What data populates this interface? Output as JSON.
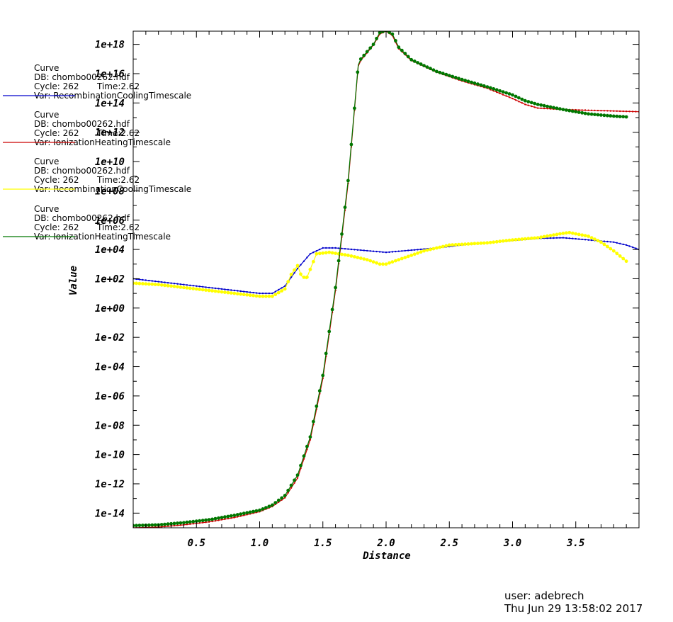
{
  "chart_data": {
    "type": "line",
    "xlabel": "Distance",
    "ylabel": "Value",
    "xlim": [
      0.0,
      4.0
    ],
    "ylim_exp": [
      -15,
      18.9
    ],
    "yscale": "log",
    "grid": false,
    "x_ticks": [
      "0.5",
      "1.0",
      "1.5",
      "2.0",
      "2.5",
      "3.0",
      "3.5"
    ],
    "y_ticks": [
      "1e+18",
      "1e+16",
      "1e+14",
      "1e+12",
      "1e+10",
      "1e+08",
      "1e+06",
      "1e+04",
      "1e+02",
      "1e+00",
      "1e-02",
      "1e-04",
      "1e-06",
      "1e-08",
      "1e-10",
      "1e-12",
      "1e-14"
    ],
    "legend_position": "left",
    "series": [
      {
        "name": "RecombinationCoolingTimescale",
        "header": "Curve",
        "db": "DB: chombo00262.hdf",
        "cycle": "Cycle: 262",
        "time": "Time:2.62",
        "var": "Var: RecombinationCoolingTimescale",
        "color": "#0000cc",
        "marker": "small",
        "x": [
          0.0,
          0.2,
          0.4,
          0.6,
          0.8,
          1.0,
          1.1,
          1.2,
          1.3,
          1.4,
          1.5,
          1.6,
          1.8,
          2.0,
          2.2,
          2.4,
          2.6,
          2.8,
          3.0,
          3.2,
          3.4,
          3.6,
          3.8,
          3.9,
          4.0
        ],
        "logy": [
          2.0,
          1.8,
          1.6,
          1.4,
          1.2,
          1.0,
          1.0,
          1.5,
          2.7,
          3.7,
          4.1,
          4.1,
          3.95,
          3.8,
          3.95,
          4.1,
          4.3,
          4.45,
          4.6,
          4.75,
          4.8,
          4.65,
          4.5,
          4.3,
          4.0
        ]
      },
      {
        "name": "IonizationHeatingTimescale",
        "header": "Curve",
        "db": "DB: chombo00262.hdf",
        "cycle": "Cycle: 262",
        "time": "Time:2.62",
        "var": "Var: IonizationHeatingTimescale",
        "color": "#cc0000",
        "marker": "small",
        "x": [
          0.0,
          0.2,
          0.4,
          0.6,
          0.8,
          1.0,
          1.1,
          1.2,
          1.3,
          1.4,
          1.5,
          1.6,
          1.7,
          1.78,
          1.8,
          1.9,
          1.95,
          2.0,
          2.05,
          2.1,
          2.2,
          2.4,
          2.6,
          2.8,
          3.0,
          3.1,
          3.2,
          3.4,
          3.6,
          3.8,
          4.0
        ],
        "logy": [
          -15.0,
          -14.95,
          -14.8,
          -14.6,
          -14.3,
          -13.9,
          -13.55,
          -12.95,
          -11.6,
          -9.0,
          -4.8,
          1.2,
          8.5,
          16.5,
          16.9,
          17.95,
          18.7,
          18.9,
          18.6,
          17.7,
          16.9,
          16.1,
          15.5,
          15.0,
          14.3,
          13.9,
          13.65,
          13.55,
          13.5,
          13.45,
          13.4
        ]
      },
      {
        "name": "RecombinationCoolingTimescale",
        "header": "Curve",
        "db": "DB: chombo00262.hdf",
        "cycle": "Cycle: 262",
        "time": "Time:2.62",
        "var": "Var: RecombinationCoolingTimescale",
        "color": "#ffff00",
        "marker": "dot",
        "x": [
          0.0,
          0.2,
          0.4,
          0.6,
          0.8,
          1.0,
          1.1,
          1.2,
          1.25,
          1.3,
          1.33,
          1.37,
          1.45,
          1.55,
          1.7,
          1.85,
          1.95,
          2.0,
          2.1,
          2.3,
          2.5,
          2.8,
          3.0,
          3.2,
          3.4,
          3.45,
          3.6,
          3.7,
          3.8,
          3.9
        ],
        "logy": [
          1.7,
          1.6,
          1.4,
          1.2,
          1.0,
          0.8,
          0.8,
          1.3,
          2.3,
          2.9,
          2.2,
          2.0,
          3.7,
          3.8,
          3.6,
          3.3,
          3.0,
          3.0,
          3.3,
          3.9,
          4.3,
          4.45,
          4.65,
          4.8,
          5.1,
          5.15,
          4.9,
          4.5,
          3.9,
          3.2
        ]
      },
      {
        "name": "IonizationHeatingTimescale",
        "header": "Curve",
        "db": "DB: chombo00262.hdf",
        "cycle": "Cycle: 262",
        "time": "Time:2.62",
        "var": "Var: IonizationHeatingTimescale",
        "color": "#007700",
        "marker": "dot",
        "x": [
          0.0,
          0.2,
          0.4,
          0.6,
          0.8,
          1.0,
          1.1,
          1.2,
          1.3,
          1.4,
          1.5,
          1.6,
          1.7,
          1.78,
          1.8,
          1.9,
          1.95,
          2.0,
          2.05,
          2.1,
          2.2,
          2.4,
          2.6,
          2.8,
          3.0,
          3.1,
          3.2,
          3.4,
          3.6,
          3.8,
          3.9
        ],
        "logy": [
          -14.85,
          -14.8,
          -14.65,
          -14.45,
          -14.15,
          -13.8,
          -13.45,
          -12.8,
          -11.4,
          -8.8,
          -4.6,
          1.4,
          8.7,
          16.6,
          17.0,
          18.0,
          18.8,
          18.95,
          18.7,
          17.8,
          16.95,
          16.15,
          15.6,
          15.1,
          14.55,
          14.15,
          13.9,
          13.55,
          13.25,
          13.1,
          13.05
        ]
      }
    ]
  },
  "user_line": "user: adebrech",
  "date_line": "Thu Jun 29 13:58:02 2017"
}
